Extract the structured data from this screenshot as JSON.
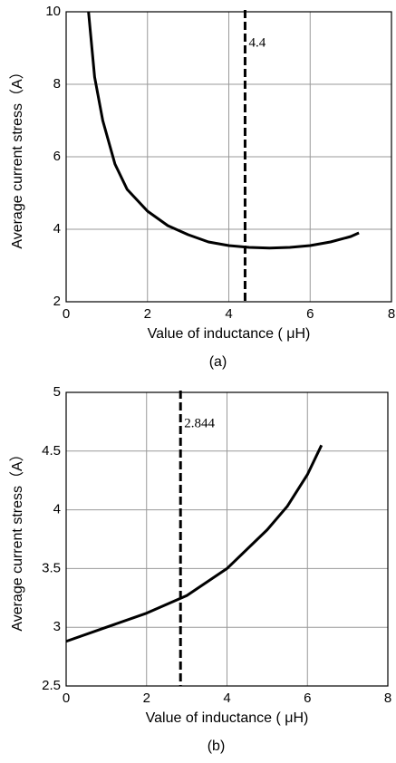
{
  "chart_data": [
    {
      "type": "line",
      "caption": "(a)",
      "x_label": "Value of inductance ( μH)",
      "y_label": "Average current stress（A）",
      "x": [
        0.55,
        0.7,
        0.9,
        1.2,
        1.5,
        2,
        2.5,
        3,
        3.5,
        4,
        4.5,
        5,
        5.5,
        6,
        6.5,
        7,
        7.2
      ],
      "series": [
        {
          "color": "#000000",
          "values": [
            10,
            8.2,
            7,
            5.8,
            5.1,
            4.5,
            4.1,
            3.85,
            3.65,
            3.55,
            3.5,
            3.48,
            3.5,
            3.55,
            3.65,
            3.8,
            3.9
          ]
        }
      ],
      "vline": 4.4,
      "xlim": [
        0,
        8
      ],
      "xticks": [
        0,
        2,
        4,
        6,
        8
      ],
      "ylim": [
        2,
        10
      ],
      "yticks": [
        2,
        4,
        6,
        8,
        10
      ],
      "grid": true
    },
    {
      "type": "line",
      "caption": "(b)",
      "x_label": "Value of inductance ( μH)",
      "y_label": "Average current stress（A）",
      "x": [
        0,
        1,
        2,
        3,
        4,
        5,
        5.5,
        6,
        6.35
      ],
      "series": [
        {
          "color": "#000000",
          "values": [
            2.88,
            3.0,
            3.12,
            3.27,
            3.5,
            3.83,
            4.03,
            4.3,
            4.55
          ]
        }
      ],
      "vline": 2.844,
      "xlim": [
        0,
        8
      ],
      "xticks": [
        0,
        2,
        4,
        6,
        8
      ],
      "ylim": [
        2.5,
        5
      ],
      "yticks": [
        2.5,
        3,
        3.5,
        4,
        4.5,
        5
      ],
      "grid": true
    }
  ]
}
